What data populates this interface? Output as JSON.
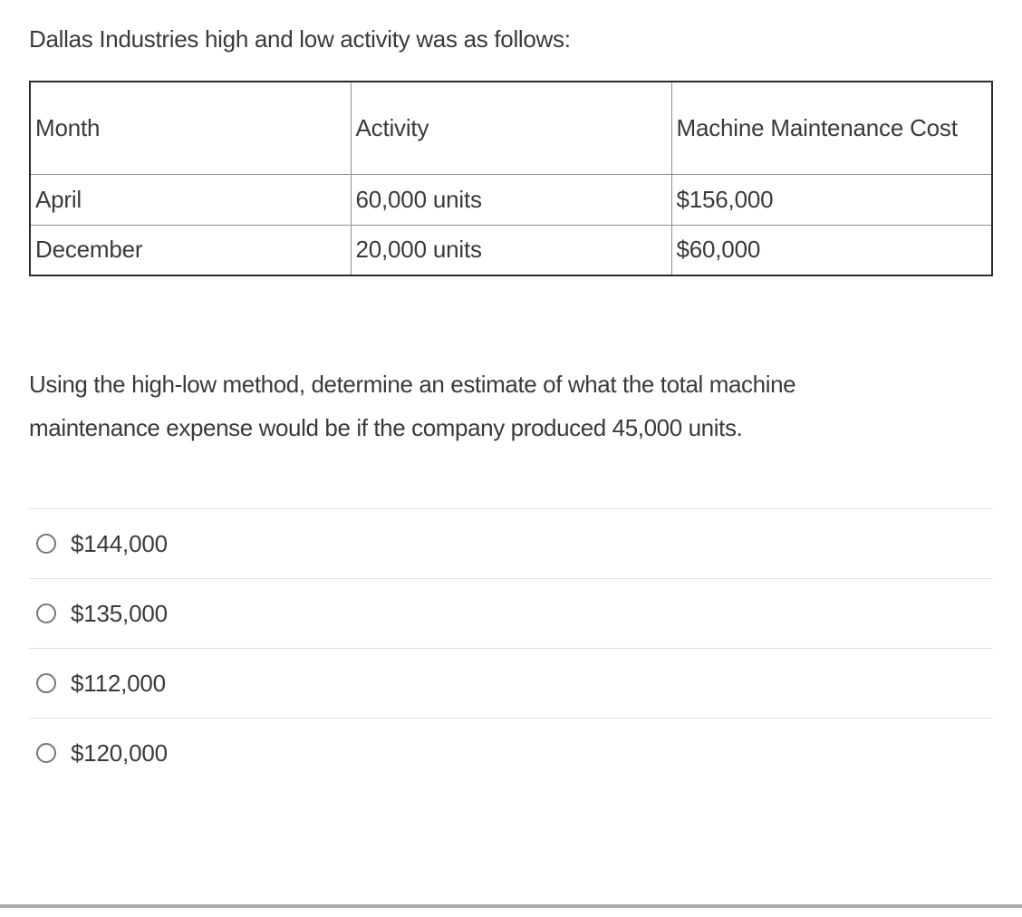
{
  "question": {
    "intro": "Dallas Industries high and low activity was as follows:",
    "table": {
      "headers": [
        "Month",
        "Activity",
        "Machine Maintenance Cost"
      ],
      "rows": [
        {
          "month": "April",
          "activity": "60,000 units",
          "cost": "$156,000"
        },
        {
          "month": "December",
          "activity": "20,000 units",
          "cost": "$60,000"
        }
      ]
    },
    "prompt": "Using the high-low method, determine an estimate of what the total machine maintenance expense would be if the company produced 45,000 units.",
    "options": [
      {
        "label": "$144,000",
        "selected": false
      },
      {
        "label": "$135,000",
        "selected": false
      },
      {
        "label": "$112,000",
        "selected": false
      },
      {
        "label": "$120,000",
        "selected": false
      }
    ]
  },
  "colors": {
    "text": "#3a3a3a",
    "tableOuter": "#2b2b2b",
    "tableInner": "#8e8e8e",
    "divider": "#e2e2e2",
    "radio": "#777777",
    "bar": "#ababab",
    "bg": "#ffffff"
  }
}
